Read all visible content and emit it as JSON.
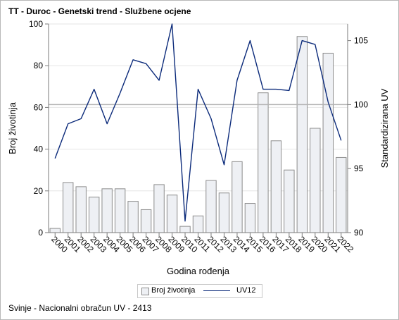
{
  "title": "TT - Duroc - Genetski trend - Službene ocjene",
  "footnote": "Svinje - Nacionalni obračun UV - 2413",
  "legend": {
    "bar_label": "Broj životinja",
    "line_label": "UV12"
  },
  "colors": {
    "bar_fill": "#eef0f4",
    "bar_stroke": "#8c8c8c",
    "line": "#0b2a7a",
    "grid": "#e6e6e6",
    "refline": "#b3b3b3",
    "axis": "#7a7a7a"
  },
  "chart_data": {
    "type": "bar+line",
    "categories": [
      "2000",
      "2001",
      "2002",
      "2003",
      "2004",
      "2005",
      "2006",
      "2007",
      "2008",
      "2009",
      "2010",
      "2011",
      "2012",
      "2013",
      "2014",
      "2015",
      "2016",
      "2017",
      "2018",
      "2019",
      "2020",
      "2021",
      "2022"
    ],
    "series": [
      {
        "name": "Broj životinja",
        "type": "bar",
        "axis": "left",
        "values": [
          2,
          24,
          22,
          17,
          21,
          21,
          15,
          11,
          23,
          18,
          3,
          8,
          25,
          19,
          34,
          14,
          67,
          44,
          30,
          94,
          50,
          86,
          36
        ]
      },
      {
        "name": "UV12",
        "type": "line",
        "axis": "right",
        "values": [
          95.8,
          98.5,
          98.9,
          101.2,
          98.5,
          100.9,
          103.5,
          103.2,
          101.9,
          106.3,
          90.9,
          101.2,
          98.9,
          95.3,
          101.9,
          105.0,
          101.2,
          101.2,
          101.1,
          105.0,
          104.7,
          100.2,
          97.2
        ]
      }
    ],
    "xlabel": "Godina rođenja",
    "ylabel": "Broj životinja",
    "y2label": "Standardizirana UV",
    "ylim": [
      0,
      100
    ],
    "y2lim": [
      90,
      106.3
    ],
    "yticks": [
      0,
      20,
      40,
      60,
      80,
      100
    ],
    "y2ticks": [
      90,
      95,
      100,
      105
    ],
    "reference_line_y2": 100,
    "grid": true,
    "legend_position": "bottom"
  }
}
